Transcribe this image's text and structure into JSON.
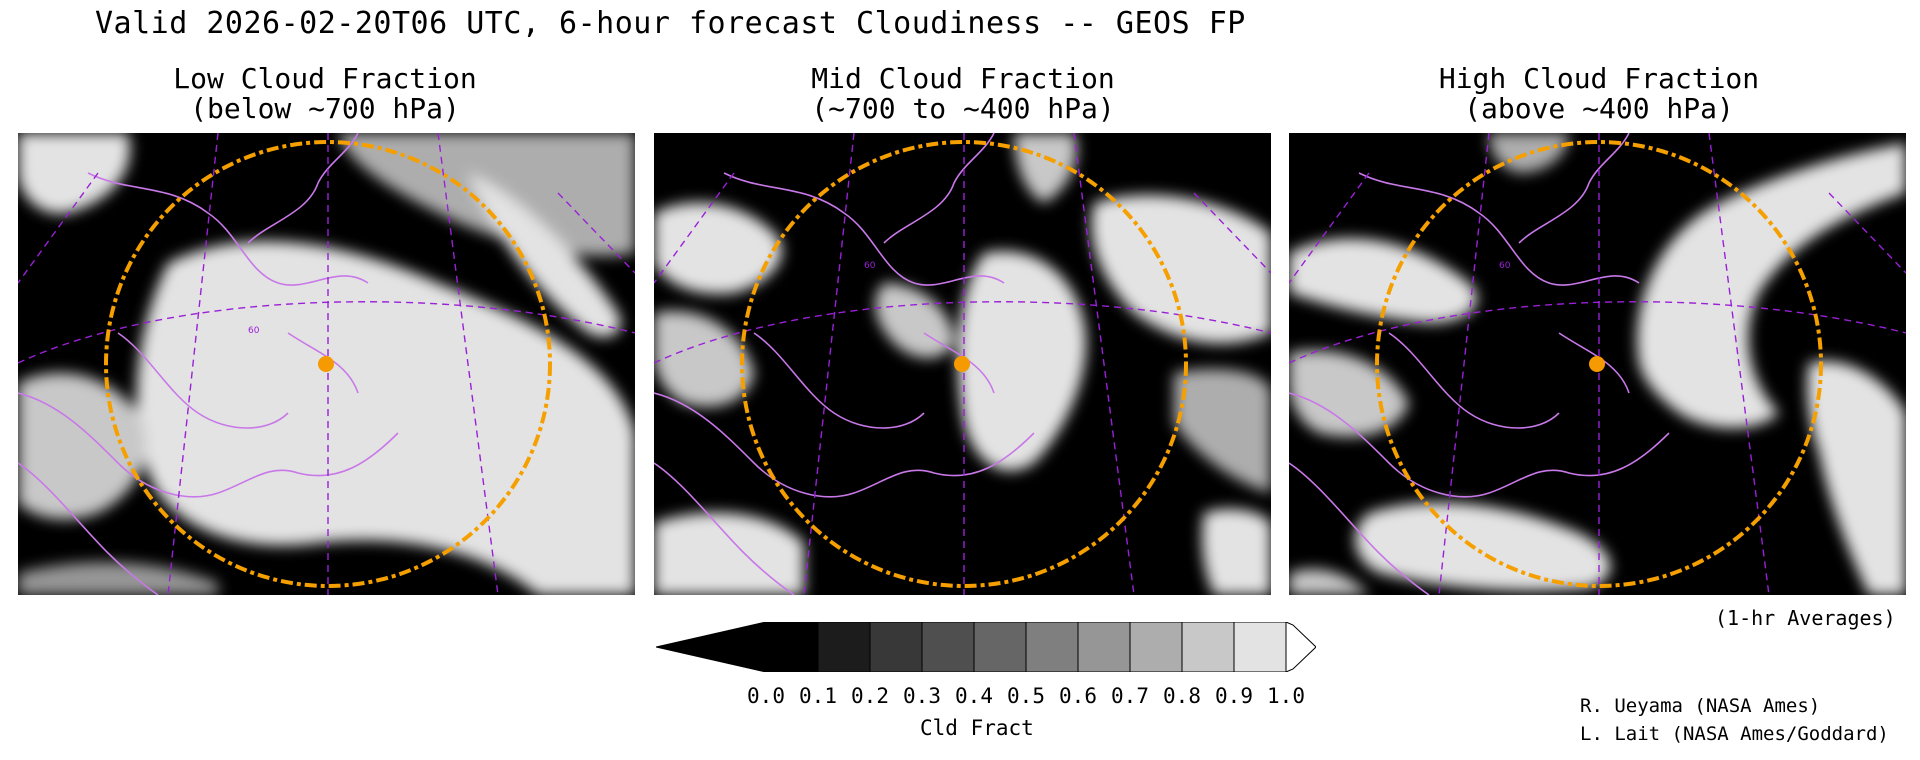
{
  "title": "Valid 2026-02-20T06 UTC, 6-hour forecast Cloudiness -- GEOS FP",
  "panels": [
    {
      "title_line1": "Low Cloud Fraction",
      "title_line2": "(below ~700 hPa)",
      "lat_label": "60"
    },
    {
      "title_line1": "Mid Cloud Fraction",
      "title_line2": "(~700 to ~400 hPa)",
      "lat_label": "60"
    },
    {
      "title_line1": "High Cloud Fraction",
      "title_line2": "(above ~400 hPa)",
      "lat_label": "60"
    }
  ],
  "colorbar": {
    "label": "Cld Fract",
    "ticks": [
      "0.0",
      "0.1",
      "0.2",
      "0.3",
      "0.4",
      "0.5",
      "0.6",
      "0.7",
      "0.8",
      "0.9",
      "1.0"
    ],
    "colors": [
      "#000000",
      "#1c1c1c",
      "#383838",
      "#4f4f4f",
      "#666666",
      "#7f7f7f",
      "#969696",
      "#adadad",
      "#c8c8c8",
      "#e3e3e3"
    ]
  },
  "note": "(1-hr Averages)",
  "credits": [
    "R. Ueyama (NASA Ames)",
    "L. Lait (NASA Ames/Goddard)"
  ],
  "colors": {
    "coast": "#c878e8",
    "grid": "#9a20d8",
    "range_ring": "#f5a000",
    "site_marker": "#f59a00"
  }
}
